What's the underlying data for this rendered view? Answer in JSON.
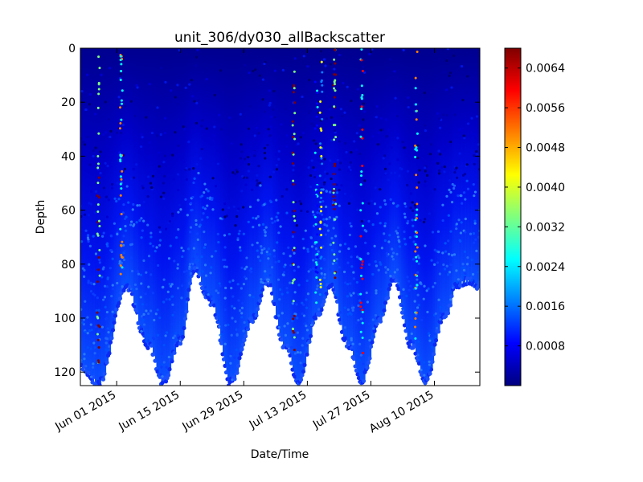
{
  "chart_data": {
    "type": "scatter",
    "title": "unit_306/dy030_allBackscatter",
    "xlabel": "Date/Time",
    "ylabel": "Depth",
    "x_range": [
      "2015-05-24",
      "2015-08-20"
    ],
    "ylim": [
      125,
      0
    ],
    "y_inverted": true,
    "y_ticks": [
      "0",
      "20",
      "40",
      "60",
      "80",
      "100",
      "120"
    ],
    "x_ticks": [
      "Jun 01 2015",
      "Jun 15 2015",
      "Jun 29 2015",
      "Jul 13 2015",
      "Jul 27 2015",
      "Aug 10 2015"
    ],
    "x_tick_dates": [
      "2015-06-01",
      "2015-06-15",
      "2015-06-29",
      "2015-07-13",
      "2015-07-27",
      "2015-08-10"
    ],
    "grid": false,
    "colormap": "jet",
    "colorbar": {
      "min": 0.0,
      "max": 0.0068,
      "ticks": [
        "0.0008",
        "0.0016",
        "0.0024",
        "0.0032",
        "0.0040",
        "0.0048",
        "0.0056",
        "0.0064"
      ],
      "colors": [
        "#00007f",
        "#0000ff",
        "#007fff",
        "#00ffff",
        "#7fff7f",
        "#ffff00",
        "#ff7f00",
        "#ff0000",
        "#7f0000"
      ]
    },
    "max_depth_cycle": [
      {
        "date": "2015-05-24",
        "depth": 118
      },
      {
        "date": "2015-05-28",
        "depth": 124
      },
      {
        "date": "2015-06-03",
        "depth": 88
      },
      {
        "date": "2015-06-08",
        "depth": 110
      },
      {
        "date": "2015-06-11",
        "depth": 124
      },
      {
        "date": "2015-06-15",
        "depth": 108
      },
      {
        "date": "2015-06-18",
        "depth": 82
      },
      {
        "date": "2015-06-22",
        "depth": 95
      },
      {
        "date": "2015-06-26",
        "depth": 124
      },
      {
        "date": "2015-07-01",
        "depth": 100
      },
      {
        "date": "2015-07-04",
        "depth": 86
      },
      {
        "date": "2015-07-08",
        "depth": 110
      },
      {
        "date": "2015-07-11",
        "depth": 123
      },
      {
        "date": "2015-07-15",
        "depth": 100
      },
      {
        "date": "2015-07-18",
        "depth": 88
      },
      {
        "date": "2015-07-22",
        "depth": 110
      },
      {
        "date": "2015-07-25",
        "depth": 123
      },
      {
        "date": "2015-07-29",
        "depth": 100
      },
      {
        "date": "2015-08-01",
        "depth": 86
      },
      {
        "date": "2015-08-05",
        "depth": 110
      },
      {
        "date": "2015-08-08",
        "depth": 123
      },
      {
        "date": "2015-08-12",
        "depth": 100
      },
      {
        "date": "2015-08-15",
        "depth": 88
      },
      {
        "date": "2015-08-17",
        "depth": 86
      },
      {
        "date": "2015-08-20",
        "depth": 88
      }
    ],
    "high_backscatter_streaks": [
      {
        "date": "2015-05-28",
        "value": 0.0064
      },
      {
        "date": "2015-06-02",
        "value": 0.0048
      },
      {
        "date": "2015-07-10",
        "value": 0.0064
      },
      {
        "date": "2015-07-15",
        "value": 0.0024
      },
      {
        "date": "2015-07-16",
        "value": 0.004
      },
      {
        "date": "2015-07-19",
        "value": 0.0064
      },
      {
        "date": "2015-07-25",
        "value": 0.0056
      },
      {
        "date": "2015-08-06",
        "value": 0.0048
      }
    ]
  }
}
